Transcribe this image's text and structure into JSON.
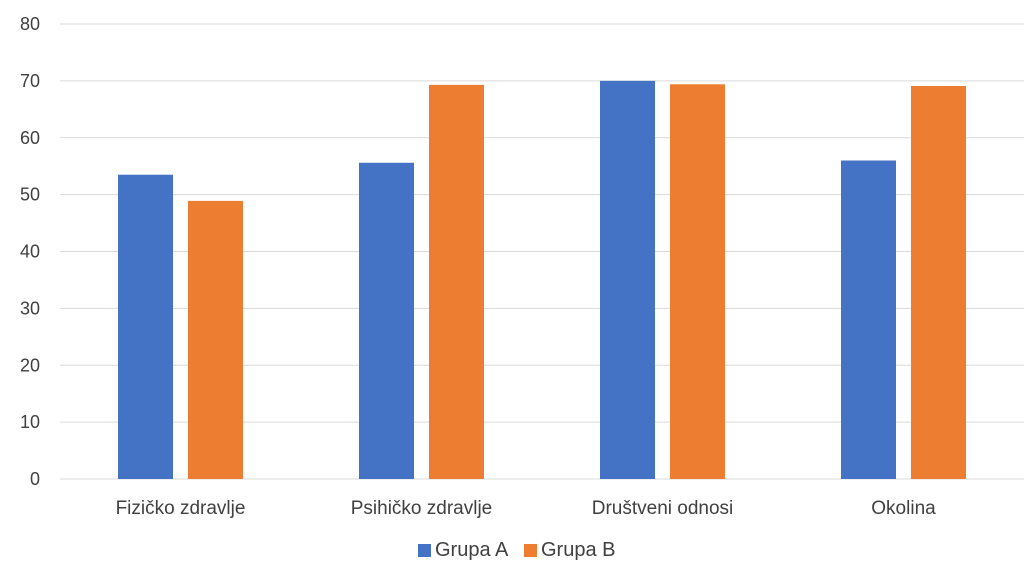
{
  "chart_data": {
    "type": "bar",
    "categories": [
      "Fizičko zdravlje",
      "Psihičko zdravlje",
      "Društveni odnosi",
      "Okolina"
    ],
    "series": [
      {
        "name": "Grupa A",
        "color": "#4472C4",
        "values": [
          53.5,
          55.6,
          70.0,
          56.0
        ]
      },
      {
        "name": "Grupa B",
        "color": "#ED7D31",
        "values": [
          48.9,
          69.3,
          69.4,
          69.1
        ]
      }
    ],
    "yticks": [
      "0",
      "10",
      "20",
      "30",
      "40",
      "50",
      "60",
      "70",
      "80"
    ],
    "ylim": [
      0,
      80
    ],
    "grid": true,
    "legend_position": "bottom"
  }
}
